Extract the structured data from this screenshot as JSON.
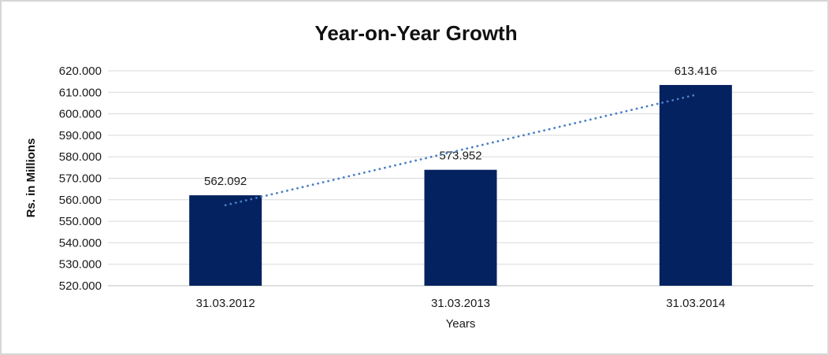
{
  "window": {
    "background": "#FFFFFF",
    "frame_border_color": "#D6D6D6"
  },
  "chart_data": {
    "type": "bar",
    "title": "Year-on-Year Growth",
    "xlabel": "Years",
    "ylabel": "Rs. in Millions",
    "categories": [
      "31.03.2012",
      "31.03.2013",
      "31.03.2014"
    ],
    "values": [
      562.092,
      573.952,
      613.416
    ],
    "data_labels": [
      "562.092",
      "573.952",
      "613.416"
    ],
    "ylim": [
      520,
      620
    ],
    "ytick_step": 10,
    "ytick_labels": [
      "620.000",
      "610.000",
      "600.000",
      "590.000",
      "580.000",
      "570.000",
      "560.000",
      "550.000",
      "540.000",
      "530.000",
      "520.000"
    ],
    "grid": true,
    "legend": "none",
    "bar_color": "#04225F",
    "gridline_color": "#D9D9D9",
    "axis_line_color": "#BFBFBF",
    "text_color": "#1A1A1A",
    "title_color": "#111111",
    "trendline": {
      "type": "linear",
      "style": "dotted",
      "color": "#4A7EC6",
      "fit_endpoint_values": [
        557.49,
        608.82
      ]
    }
  }
}
